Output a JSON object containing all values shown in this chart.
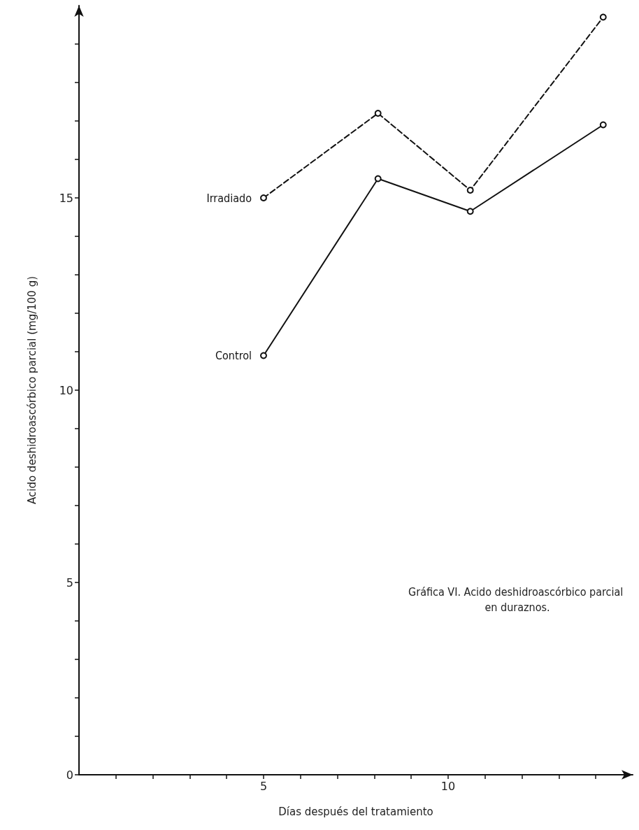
{
  "chart_data": {
    "type": "line",
    "title": "Gráfica VI. Acido deshidroascórbico parcial en duraznos.",
    "xlabel": "Días después del tratamiento",
    "ylabel": "Acido deshidroascórbico parcial (mg/100 g)",
    "x": [
      5,
      8.1,
      10.6,
      14.2
    ],
    "series": [
      {
        "name": "Irradiado",
        "color": "#111111",
        "line_style": "dashed",
        "values": [
          15.0,
          17.2,
          15.2,
          19.7
        ]
      },
      {
        "name": "Control",
        "color": "#111111",
        "line_style": "solid",
        "values": [
          10.9,
          15.5,
          14.65,
          16.9
        ]
      }
    ],
    "xlim": [
      0,
      15
    ],
    "xticks": [
      {
        "value": 1,
        "label": null
      },
      {
        "value": 2,
        "label": null
      },
      {
        "value": 3,
        "label": null
      },
      {
        "value": 4,
        "label": null
      },
      5,
      {
        "value": 6,
        "label": null
      },
      {
        "value": 7,
        "label": null
      },
      {
        "value": 8,
        "label": null
      },
      {
        "value": 9,
        "label": null
      },
      10,
      {
        "value": 11,
        "label": null
      },
      {
        "value": 12,
        "label": null
      },
      {
        "value": 13,
        "label": null
      },
      {
        "value": 14,
        "label": null
      }
    ],
    "ylim": [
      0,
      20
    ],
    "yticks": [
      0,
      {
        "value": 1,
        "label": null
      },
      {
        "value": 2,
        "label": null
      },
      {
        "value": 3,
        "label": null
      },
      {
        "value": 4,
        "label": null
      },
      5,
      {
        "value": 6,
        "label": null
      },
      {
        "value": 7,
        "label": null
      },
      {
        "value": 8,
        "label": null
      },
      {
        "value": 9,
        "label": null
      },
      10,
      {
        "value": 11,
        "label": null
      },
      {
        "value": 12,
        "label": null
      },
      {
        "value": 13,
        "label": null
      },
      {
        "value": 14,
        "label": null
      },
      15,
      {
        "value": 16,
        "label": null
      },
      {
        "value": 17,
        "label": null
      },
      {
        "value": 18,
        "label": null
      },
      {
        "value": 19,
        "label": null
      }
    ],
    "grid": false,
    "legend": false,
    "marker": "circle"
  }
}
